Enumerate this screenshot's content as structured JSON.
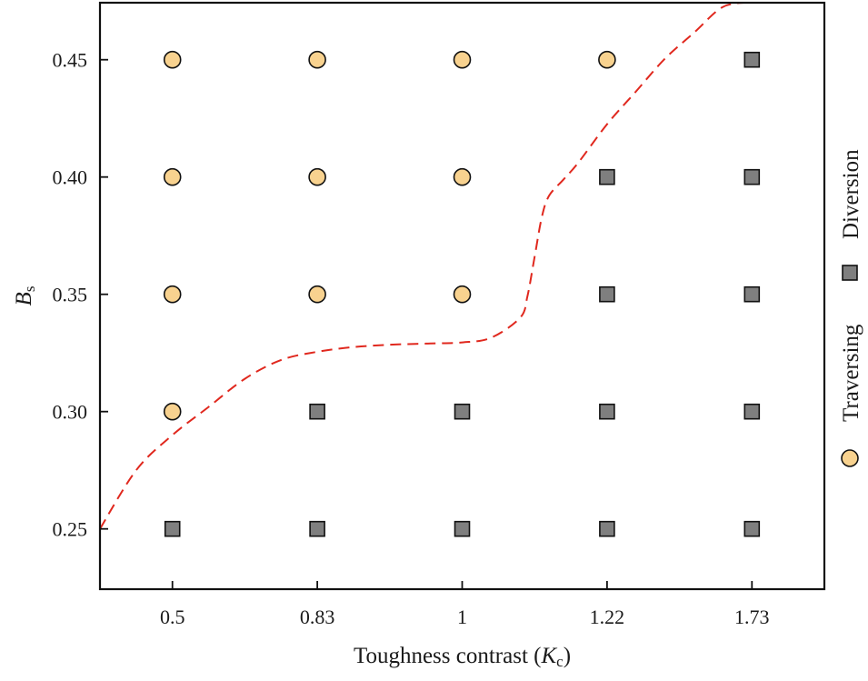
{
  "chart_data": {
    "type": "scatter",
    "xlabel_prefix": "Toughness contrast (",
    "xlabel_var": "K",
    "xlabel_sub": "c",
    "xlabel_suffix": ")",
    "ylabel_var": "B",
    "ylabel_sub": "s",
    "categories": [
      "0.5",
      "0.83",
      "1",
      "1.22",
      "1.73"
    ],
    "y_ticks": [
      "0.25",
      "0.30",
      "0.35",
      "0.40",
      "0.45"
    ],
    "y_tick_values": [
      0.25,
      0.3,
      0.35,
      0.4,
      0.45
    ],
    "ylim": [
      0.2243,
      0.4743
    ],
    "xlim": [
      -0.5,
      4.5
    ],
    "series": [
      {
        "name": "Traversing",
        "marker": "circle",
        "color": "#F8D28F",
        "points": [
          {
            "x": "0.5",
            "y": 0.45
          },
          {
            "x": "0.5",
            "y": 0.4
          },
          {
            "x": "0.5",
            "y": 0.35
          },
          {
            "x": "0.5",
            "y": 0.3
          },
          {
            "x": "0.83",
            "y": 0.45
          },
          {
            "x": "0.83",
            "y": 0.4
          },
          {
            "x": "0.83",
            "y": 0.35
          },
          {
            "x": "1",
            "y": 0.45
          },
          {
            "x": "1",
            "y": 0.4
          },
          {
            "x": "1",
            "y": 0.35
          },
          {
            "x": "1.22",
            "y": 0.45
          }
        ]
      },
      {
        "name": "Diversion",
        "marker": "square",
        "color": "#7F7F7F",
        "points": [
          {
            "x": "0.5",
            "y": 0.25
          },
          {
            "x": "0.83",
            "y": 0.3
          },
          {
            "x": "0.83",
            "y": 0.25
          },
          {
            "x": "1",
            "y": 0.3
          },
          {
            "x": "1",
            "y": 0.25
          },
          {
            "x": "1.22",
            "y": 0.4
          },
          {
            "x": "1.22",
            "y": 0.35
          },
          {
            "x": "1.22",
            "y": 0.3
          },
          {
            "x": "1.22",
            "y": 0.25
          },
          {
            "x": "1.73",
            "y": 0.45
          },
          {
            "x": "1.73",
            "y": 0.4
          },
          {
            "x": "1.73",
            "y": 0.35
          },
          {
            "x": "1.73",
            "y": 0.3
          },
          {
            "x": "1.73",
            "y": 0.25
          }
        ]
      }
    ],
    "boundary": {
      "name": "boundary",
      "color": "#E0281E",
      "style": "dashed",
      "x": [
        -0.5,
        -0.25,
        0.0,
        0.25,
        0.5,
        0.75,
        1.0,
        1.25,
        1.5,
        1.75,
        2.0,
        2.2,
        2.4,
        2.45,
        2.5,
        2.55,
        2.6,
        2.7,
        2.8,
        3.0,
        3.2,
        3.4,
        3.6,
        3.8,
        4.0
      ],
      "y": [
        0.25,
        0.275,
        0.29,
        0.302,
        0.314,
        0.322,
        0.3255,
        0.3275,
        0.3285,
        0.329,
        0.3295,
        0.3315,
        0.34,
        0.349,
        0.366,
        0.383,
        0.392,
        0.399,
        0.406,
        0.4225,
        0.4365,
        0.4505,
        0.4615,
        0.4725,
        0.4745
      ]
    },
    "legend_position": "right-vertical"
  }
}
